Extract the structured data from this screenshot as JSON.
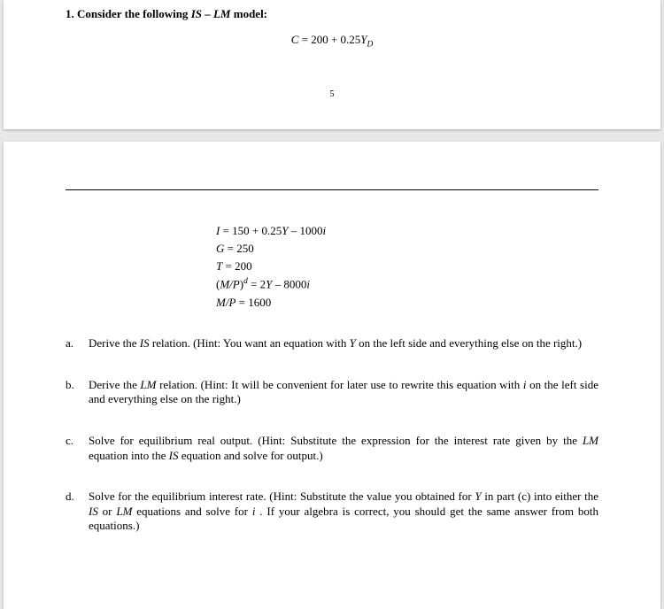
{
  "page1": {
    "q_number": "1.",
    "q_lead": "Consider the following ",
    "q_model_it": "IS – LM",
    "q_model_tail": " model:",
    "eq_c_lhs": "C",
    "eq_c_rhs": " = 200 + 0.25",
    "eq_c_sym": "Y",
    "eq_c_sub": "D",
    "page_number": "5"
  },
  "page2": {
    "eqs": {
      "i": {
        "lhs": "I",
        "rhs": " = 150 + 0.25",
        "sym": "Y",
        "tail": " – 1000",
        "isym": "i"
      },
      "g": {
        "lhs": "G",
        "rhs": " = 250"
      },
      "t": {
        "lhs": "T",
        "rhs": " = 200"
      },
      "md": {
        "lhs_open": "(",
        "lhs_mp": "M/P",
        "lhs_close": ")",
        "sup": "d",
        "rhs": " = 2",
        "sym": "Y",
        "tail": " – 8000",
        "isym": "i"
      },
      "ms": {
        "lhs": "M/P",
        "rhs": " = 1600"
      }
    },
    "parts": {
      "a": {
        "letter": "a.",
        "pre": "Derive the ",
        "rel": "IS",
        "post": "  relation. (Hint: You want an equation with ",
        "sym": "Y",
        "tail": "  on the left side and everything else on the right.)"
      },
      "b": {
        "letter": "b.",
        "pre": "Derive the ",
        "rel": "LM",
        "post": "  relation. (Hint: It will be convenient for later use to rewrite this equation with ",
        "sym": "i",
        "tail": "  on the left side and everything else on the right.)"
      },
      "c": {
        "letter": "c.",
        "pre": "Solve for equilibrium real output. (Hint: Substitute the expression for the interest rate given by the ",
        "rel1": "LM",
        "mid": "  equation into the ",
        "rel2": "IS",
        "tail": "  equation and solve for output.)"
      },
      "d": {
        "letter": "d.",
        "pre": "Solve for the equilibrium interest rate. (Hint: Substitute the value you obtained for ",
        "sym": "Y",
        "mid1": " in part (c) into either the ",
        "rel1": "IS",
        "mid2": "  or ",
        "rel2": "LM",
        "mid3": "  equations and solve for ",
        "isym": "i",
        "tail": " . If your algebra is correct, you should get the same answer from both equations.)"
      }
    }
  }
}
